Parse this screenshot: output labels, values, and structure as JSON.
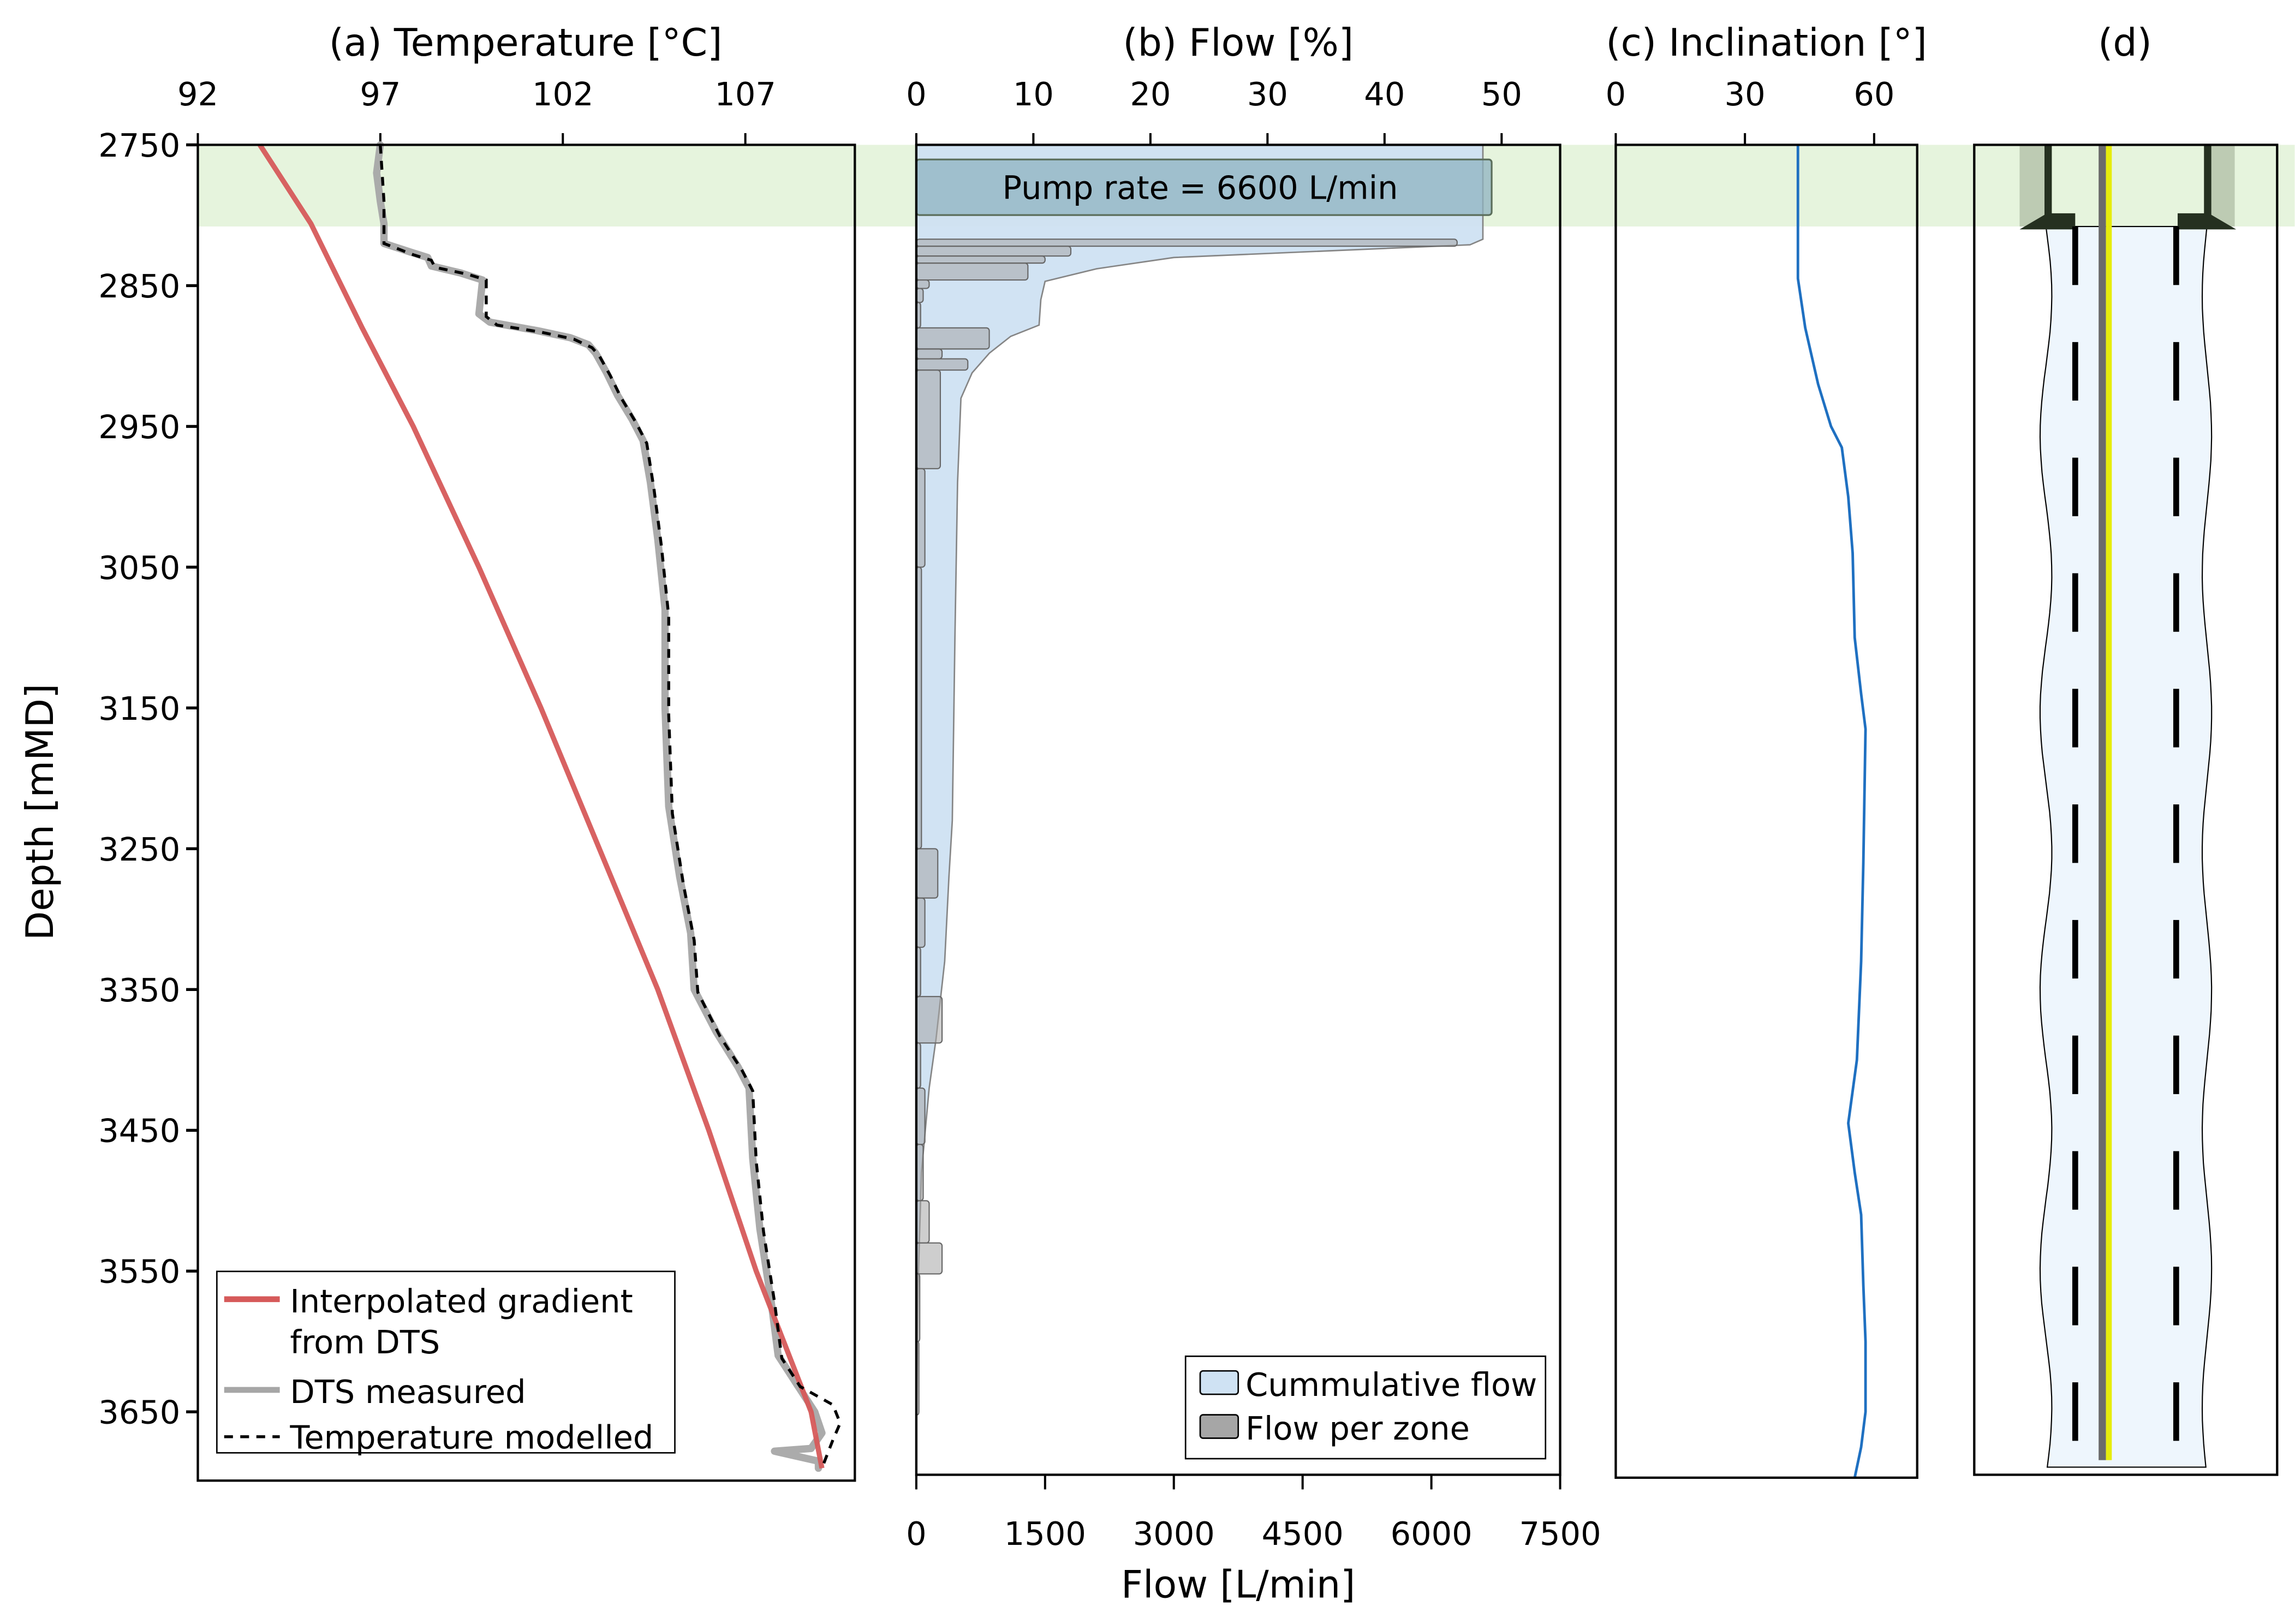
{
  "shared": {
    "depth_label": "Depth [mMD]",
    "depth_ticks": [
      2750,
      2850,
      2950,
      3050,
      3150,
      3250,
      3350,
      3450,
      3550,
      3650
    ],
    "depth_range": [
      2750,
      3700
    ],
    "highlight_zone": {
      "depth_from": 2750,
      "depth_to": 2808,
      "color": "#e6f4dd"
    }
  },
  "chart_data": [
    {
      "id": "temperature",
      "type": "line",
      "title": "(a) Temperature [°C]",
      "xlabel": "Temperature [°C]",
      "ylabel": "Depth [mMD]",
      "x_ticks": [
        92,
        97,
        102,
        107
      ],
      "xlim": [
        92,
        110
      ],
      "ylim": [
        3700,
        2750
      ],
      "legend_position": "bottom-left",
      "series": [
        {
          "name": "Interpolated gradient from DTS",
          "color": "#d65a5a",
          "points": [
            [
              93.7,
              2750
            ],
            [
              95.1,
              2806
            ],
            [
              96.5,
              2880
            ],
            [
              97.9,
              2950
            ],
            [
              99.7,
              3050
            ],
            [
              101.4,
              3150
            ],
            [
              103.0,
              3250
            ],
            [
              104.6,
              3350
            ],
            [
              106.0,
              3450
            ],
            [
              107.3,
              3550
            ],
            [
              108.8,
              3650
            ],
            [
              109.1,
              3690
            ]
          ]
        },
        {
          "name": "DTS measured",
          "color": "#a6a6a6",
          "points": [
            [
              97.0,
              2750
            ],
            [
              96.9,
              2770
            ],
            [
              97.0,
              2790
            ],
            [
              97.1,
              2806
            ],
            [
              97.1,
              2820
            ],
            [
              97.8,
              2826
            ],
            [
              98.3,
              2830
            ],
            [
              98.4,
              2836
            ],
            [
              99.2,
              2841
            ],
            [
              99.8,
              2846
            ],
            [
              99.7,
              2870
            ],
            [
              100.0,
              2876
            ],
            [
              101.3,
              2882
            ],
            [
              102.2,
              2887
            ],
            [
              102.7,
              2892
            ],
            [
              102.9,
              2898
            ],
            [
              103.2,
              2912
            ],
            [
              103.5,
              2928
            ],
            [
              103.9,
              2945
            ],
            [
              104.2,
              2960
            ],
            [
              104.4,
              2990
            ],
            [
              104.6,
              3030
            ],
            [
              104.8,
              3080
            ],
            [
              104.8,
              3150
            ],
            [
              104.9,
              3220
            ],
            [
              105.2,
              3270
            ],
            [
              105.5,
              3310
            ],
            [
              105.6,
              3350
            ],
            [
              106.2,
              3380
            ],
            [
              106.8,
              3405
            ],
            [
              107.1,
              3420
            ],
            [
              107.2,
              3470
            ],
            [
              107.4,
              3520
            ],
            [
              107.7,
              3570
            ],
            [
              107.9,
              3610
            ],
            [
              108.4,
              3630
            ],
            [
              108.9,
              3650
            ],
            [
              109.1,
              3665
            ],
            [
              108.8,
              3676
            ],
            [
              107.8,
              3678
            ],
            [
              109.0,
              3685
            ],
            [
              109.0,
              3690
            ]
          ]
        },
        {
          "name": "Temperature modelled",
          "color": "#000000",
          "points": [
            [
              97.0,
              2750
            ],
            [
              97.1,
              2790
            ],
            [
              97.1,
              2820
            ],
            [
              97.9,
              2828
            ],
            [
              98.4,
              2832
            ],
            [
              98.5,
              2837
            ],
            [
              99.4,
              2842
            ],
            [
              99.9,
              2846
            ],
            [
              99.9,
              2872
            ],
            [
              100.2,
              2878
            ],
            [
              101.4,
              2883
            ],
            [
              102.3,
              2888
            ],
            [
              102.8,
              2894
            ],
            [
              103.0,
              2900
            ],
            [
              103.3,
              2914
            ],
            [
              103.6,
              2930
            ],
            [
              104.0,
              2947
            ],
            [
              104.3,
              2962
            ],
            [
              104.5,
              2995
            ],
            [
              104.7,
              3035
            ],
            [
              104.9,
              3085
            ],
            [
              104.9,
              3155
            ],
            [
              105.0,
              3225
            ],
            [
              105.3,
              3275
            ],
            [
              105.6,
              3315
            ],
            [
              105.7,
              3352
            ],
            [
              106.3,
              3383
            ],
            [
              106.9,
              3407
            ],
            [
              107.2,
              3422
            ],
            [
              107.3,
              3472
            ],
            [
              107.5,
              3522
            ],
            [
              107.8,
              3572
            ],
            [
              108.0,
              3612
            ],
            [
              108.5,
              3632
            ],
            [
              109.4,
              3645
            ],
            [
              109.6,
              3658
            ],
            [
              109.4,
              3670
            ],
            [
              109.1,
              3690
            ]
          ]
        }
      ],
      "legend": [
        {
          "label_lines": [
            "Interpolated gradient",
            "from DTS"
          ],
          "style": "solid",
          "color": "#d65a5a"
        },
        {
          "label_lines": [
            "DTS measured"
          ],
          "style": "solid",
          "color": "#a6a6a6"
        },
        {
          "label_lines": [
            "Temperature modelled"
          ],
          "style": "dashed",
          "color": "#000000"
        }
      ]
    },
    {
      "id": "flow",
      "type": "area",
      "title": "(b) Flow [%]",
      "xlabel": "Flow [L/min]",
      "x_ticks": [
        0,
        1500,
        3000,
        4500,
        6000,
        7500
      ],
      "xlim": [
        0,
        7500
      ],
      "top_x_ticks": [
        0,
        10,
        20,
        30,
        40,
        50
      ],
      "top_x_per_percent": 66,
      "annotation": "Pump rate = 6600 L/min",
      "pump_rate": 6600,
      "legend_position": "bottom-right",
      "series": [
        {
          "name": "Cummulative flow",
          "color": "#cfe2f3",
          "points": [
            [
              6600,
              2750
            ],
            [
              6600,
              2817
            ],
            [
              6450,
              2821
            ],
            [
              3000,
              2830
            ],
            [
              2100,
              2838
            ],
            [
              1500,
              2847
            ],
            [
              1450,
              2860
            ],
            [
              1430,
              2878
            ],
            [
              1100,
              2886
            ],
            [
              850,
              2898
            ],
            [
              650,
              2912
            ],
            [
              520,
              2930
            ],
            [
              480,
              2990
            ],
            [
              450,
              3100
            ],
            [
              420,
              3230
            ],
            [
              380,
              3270
            ],
            [
              330,
              3330
            ],
            [
              230,
              3385
            ],
            [
              150,
              3420
            ],
            [
              60,
              3480
            ],
            [
              20,
              3560
            ],
            [
              5,
              3640
            ],
            [
              0,
              3650
            ]
          ]
        },
        {
          "name": "Flow per zone",
          "color": "#a6a6a6",
          "zones": [
            {
              "from": 2817,
              "to": 2822,
              "flow": 6300
            },
            {
              "from": 2822,
              "to": 2829,
              "flow": 1800
            },
            {
              "from": 2829,
              "to": 2834,
              "flow": 1500
            },
            {
              "from": 2834,
              "to": 2846,
              "flow": 1300
            },
            {
              "from": 2846,
              "to": 2852,
              "flow": 150
            },
            {
              "from": 2852,
              "to": 2862,
              "flow": 80
            },
            {
              "from": 2862,
              "to": 2880,
              "flow": 50
            },
            {
              "from": 2880,
              "to": 2895,
              "flow": 850
            },
            {
              "from": 2895,
              "to": 2902,
              "flow": 300
            },
            {
              "from": 2902,
              "to": 2910,
              "flow": 600
            },
            {
              "from": 2910,
              "to": 2980,
              "flow": 280
            },
            {
              "from": 2980,
              "to": 3050,
              "flow": 100
            },
            {
              "from": 3050,
              "to": 3250,
              "flow": 60
            },
            {
              "from": 3250,
              "to": 3285,
              "flow": 250
            },
            {
              "from": 3285,
              "to": 3320,
              "flow": 100
            },
            {
              "from": 3320,
              "to": 3355,
              "flow": 50
            },
            {
              "from": 3355,
              "to": 3388,
              "flow": 300
            },
            {
              "from": 3388,
              "to": 3420,
              "flow": 50
            },
            {
              "from": 3420,
              "to": 3460,
              "flow": 100
            },
            {
              "from": 3460,
              "to": 3500,
              "flow": 80
            },
            {
              "from": 3500,
              "to": 3530,
              "flow": 150
            },
            {
              "from": 3530,
              "to": 3552,
              "flow": 300
            },
            {
              "from": 3552,
              "to": 3600,
              "flow": 40
            },
            {
              "from": 3600,
              "to": 3652,
              "flow": 30
            }
          ]
        }
      ],
      "legend": [
        {
          "label": "Cummulative flow",
          "color": "#cfe2f3"
        },
        {
          "label": "Flow per zone",
          "color": "#a6a6a6"
        }
      ]
    },
    {
      "id": "inclination",
      "type": "line",
      "title": "(c) Inclination [°]",
      "x_ticks": [
        0,
        30,
        60
      ],
      "xlim": [
        0,
        70
      ],
      "series": [
        {
          "name": "Inclination",
          "color": "#1f70c1",
          "points": [
            [
              42.3,
              2750
            ],
            [
              42.3,
              2845
            ],
            [
              44,
              2880
            ],
            [
              47,
              2920
            ],
            [
              50,
              2950
            ],
            [
              52.5,
              2965
            ],
            [
              54,
              3000
            ],
            [
              55,
              3040
            ],
            [
              55.5,
              3100
            ],
            [
              57,
              3140
            ],
            [
              58,
              3165
            ],
            [
              57.5,
              3260
            ],
            [
              57,
              3330
            ],
            [
              56,
              3400
            ],
            [
              54,
              3445
            ],
            [
              55.5,
              3480
            ],
            [
              57,
              3510
            ],
            [
              57.5,
              3560
            ],
            [
              58,
              3600
            ],
            [
              58,
              3650
            ],
            [
              57,
              3675
            ],
            [
              55.5,
              3700
            ]
          ]
        }
      ]
    },
    {
      "id": "well-schematic",
      "type": "diagram",
      "title": "(d)",
      "casing_shoe_depth": 2808,
      "colors": {
        "casing": "#253020",
        "openhole": "#eef6fd",
        "tubing": "#6b6b6b",
        "cable": "#e6ec0c",
        "cement": "#b5c3ab"
      }
    }
  ]
}
